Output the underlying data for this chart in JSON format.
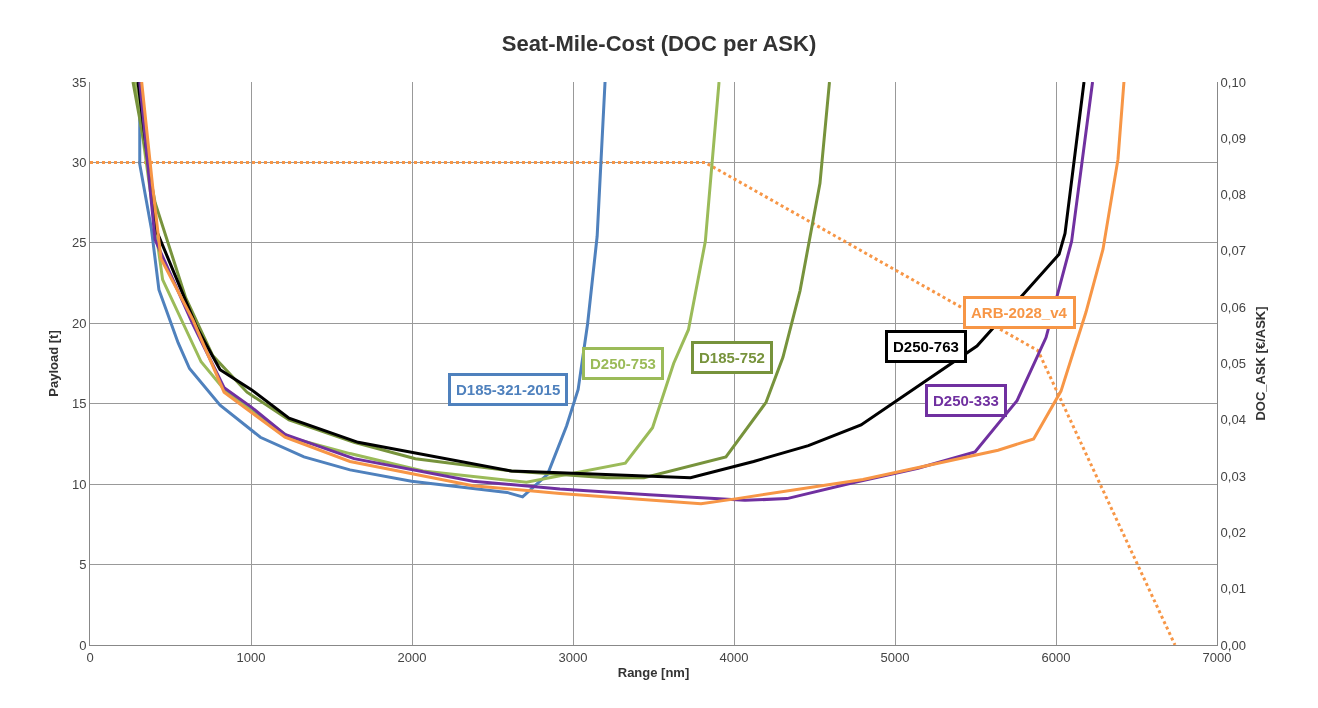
{
  "chart_data": {
    "type": "line",
    "title": "Seat-Mile-Cost (DOC per ASK)",
    "xlabel": "Range [nm]",
    "ylabel": "Payload [t]",
    "y2label": "DOC_ASK [€/ASK]",
    "xlim": [
      0,
      7000
    ],
    "xticks": [
      0,
      1000,
      2000,
      3000,
      4000,
      5000,
      6000,
      7000
    ],
    "ylim": [
      0,
      35
    ],
    "yticks": [
      0,
      5,
      10,
      15,
      20,
      25,
      30,
      35
    ],
    "y2lim": [
      0,
      0.1
    ],
    "y2ticks": [
      {
        "value": 0,
        "label": "0,00"
      },
      {
        "value": 0.01,
        "label": "0,01"
      },
      {
        "value": 0.02,
        "label": "0,02"
      },
      {
        "value": 0.03,
        "label": "0,03"
      },
      {
        "value": 0.04,
        "label": "0,04"
      },
      {
        "value": 0.05,
        "label": "0,05"
      },
      {
        "value": 0.06,
        "label": "0,06"
      },
      {
        "value": 0.07,
        "label": "0,07"
      },
      {
        "value": 0.08,
        "label": "0,08"
      },
      {
        "value": 0.09,
        "label": "0,09"
      },
      {
        "value": 0.1,
        "label": "0,10"
      }
    ],
    "grid": true,
    "legend": false,
    "marker": "none",
    "series": [
      {
        "color": "#f79646",
        "axis": "y",
        "line_style": "dotted",
        "x": [
          0,
          3820,
          5888,
          6739
        ],
        "values": [
          30,
          30,
          18.3,
          0
        ]
      },
      {
        "name": "D185-321-2015",
        "color": "#4f81bd",
        "axis": "y2",
        "x": [
          309,
          309,
          381,
          428,
          547,
          618,
          808,
          1058,
          1329,
          1615,
          1997,
          2590,
          2687,
          2842,
          2960,
          3032,
          3091,
          3150,
          3199
        ],
        "values": [
          0.1,
          0.0854,
          0.074,
          0.0631,
          0.0537,
          0.0491,
          0.0426,
          0.0369,
          0.0334,
          0.0311,
          0.0291,
          0.0271,
          0.0263,
          0.0303,
          0.0389,
          0.0454,
          0.0571,
          0.0726,
          0.1
        ]
      },
      {
        "name": "D250-753",
        "color": "#9bbb59",
        "axis": "y2",
        "x": [
          280,
          451,
          690,
          833,
          1236,
          1615,
          2069,
          2711,
          3325,
          3494,
          3625,
          3717,
          3822,
          3907
        ],
        "values": [
          0.1,
          0.0649,
          0.0503,
          0.0454,
          0.0369,
          0.034,
          0.0309,
          0.0289,
          0.0323,
          0.0386,
          0.05,
          0.056,
          0.0717,
          0.1
        ]
      },
      {
        "name": "D185-752",
        "color": "#77933c",
        "axis": "y2",
        "x": [
          267,
          404,
          594,
          762,
          975,
          1236,
          1640,
          2021,
          2617,
          3211,
          3441,
          3950,
          4199,
          4304,
          4410,
          4534,
          4593
        ],
        "values": [
          0.1,
          0.0786,
          0.0617,
          0.0514,
          0.0449,
          0.04,
          0.036,
          0.0331,
          0.0309,
          0.0297,
          0.0297,
          0.0334,
          0.0431,
          0.0511,
          0.0629,
          0.082,
          0.1
        ]
      },
      {
        "name": "D250-763",
        "color": "#000000",
        "axis": "y2",
        "x": [
          298,
          416,
          665,
          808,
          1000,
          1236,
          1665,
          2617,
          2919,
          3730,
          4122,
          4462,
          4789,
          5509,
          6019,
          6056,
          6174
        ],
        "values": [
          0.1,
          0.0734,
          0.0563,
          0.0489,
          0.0454,
          0.0403,
          0.036,
          0.0309,
          0.0306,
          0.0297,
          0.0326,
          0.0354,
          0.0391,
          0.0531,
          0.0694,
          0.0731,
          0.1
        ]
      },
      {
        "name": "D250-333",
        "color": "#7030a0",
        "axis": "y2",
        "x": [
          309,
          404,
          640,
          833,
          1000,
          1211,
          1640,
          2379,
          2919,
          3472,
          4068,
          4329,
          4752,
          5143,
          5497,
          5758,
          5938,
          6097,
          6227
        ],
        "values": [
          0.1,
          0.072,
          0.0569,
          0.0457,
          0.0423,
          0.0374,
          0.0331,
          0.0291,
          0.0277,
          0.0267,
          0.0257,
          0.026,
          0.0289,
          0.0314,
          0.0343,
          0.0434,
          0.0546,
          0.0717,
          0.1
        ]
      },
      {
        "name": "ARB-2028_v4",
        "color": "#f79646",
        "axis": "y2",
        "x": [
          321,
          391,
          441,
          640,
          833,
          1211,
          1615,
          2379,
          2919,
          3795,
          4019,
          4801,
          5640,
          5861,
          6031,
          6186,
          6292,
          6385,
          6422
        ],
        "values": [
          0.1,
          0.0809,
          0.0686,
          0.0577,
          0.0449,
          0.0369,
          0.0326,
          0.0283,
          0.0269,
          0.0251,
          0.026,
          0.0294,
          0.0346,
          0.0366,
          0.0451,
          0.0591,
          0.0703,
          0.0863,
          0.1
        ]
      }
    ]
  }
}
